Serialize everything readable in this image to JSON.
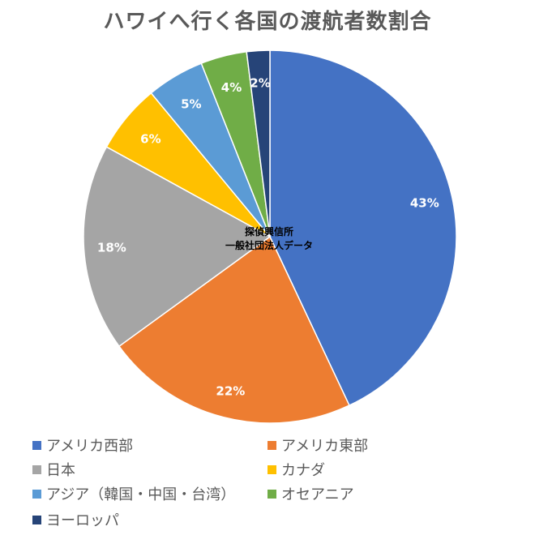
{
  "chart_data": {
    "type": "pie",
    "title": "ハワイへ行く各国の渡航者数割合",
    "note_lines": [
      "探偵興信所",
      "一般社団法人データ"
    ],
    "start_angle_deg": 0,
    "direction": "clockwise",
    "slices": [
      {
        "name": "アメリカ西部",
        "value": 43,
        "label": "43%",
        "color": "#4472C4"
      },
      {
        "name": "アメリカ東部",
        "value": 22,
        "label": "22%",
        "color": "#ED7D31"
      },
      {
        "name": "日本",
        "value": 18,
        "label": "18%",
        "color": "#A5A5A5"
      },
      {
        "name": "カナダ",
        "value": 6,
        "label": "6%",
        "color": "#FFC000"
      },
      {
        "name": "アジア（韓国・中国・台湾）",
        "value": 5,
        "label": "5%",
        "color": "#5B9BD5"
      },
      {
        "name": "オセアニア",
        "value": 4,
        "label": "4%",
        "color": "#70AD47"
      },
      {
        "name": "ヨーロッパ",
        "value": 2,
        "label": "2%",
        "color": "#264478"
      }
    ],
    "legend_position": "bottom"
  }
}
